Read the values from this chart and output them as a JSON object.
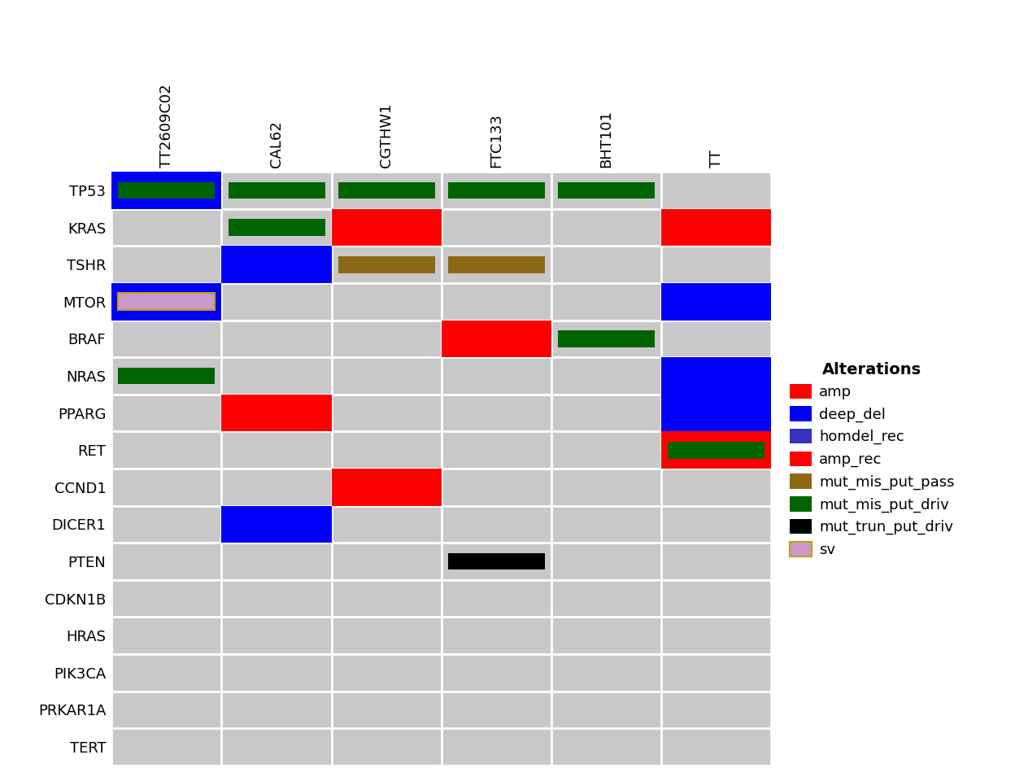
{
  "genes": [
    "TP53",
    "KRAS",
    "TSHR",
    "MTOR",
    "BRAF",
    "NRAS",
    "PPARG",
    "RET",
    "CCND1",
    "DICER1",
    "PTEN",
    "CDKN1B",
    "HRAS",
    "PIK3CA",
    "PRKAR1A",
    "TERT"
  ],
  "cell_lines": [
    "TT2609C02",
    "CAL62",
    "CGTHW1",
    "FTC133",
    "BHT101",
    "TT"
  ],
  "alterations": {
    "TP53": {
      "TT2609C02": [
        "deep_del",
        "mut_mis_put_driv"
      ],
      "CAL62": [
        "mut_mis_put_driv"
      ],
      "CGTHW1": [
        "mut_mis_put_driv"
      ],
      "FTC133": [
        "mut_mis_put_driv"
      ],
      "BHT101": [
        "mut_mis_put_driv"
      ],
      "TT": []
    },
    "KRAS": {
      "TT2609C02": [],
      "CAL62": [
        "mut_mis_put_driv"
      ],
      "CGTHW1": [
        "amp_rec"
      ],
      "FTC133": [],
      "BHT101": [],
      "TT": [
        "amp_rec"
      ]
    },
    "TSHR": {
      "TT2609C02": [],
      "CAL62": [
        "deep_del"
      ],
      "CGTHW1": [
        "mut_mis_put_pass"
      ],
      "FTC133": [
        "mut_mis_put_pass"
      ],
      "BHT101": [],
      "TT": []
    },
    "MTOR": {
      "TT2609C02": [
        "deep_del",
        "sv"
      ],
      "CAL62": [],
      "CGTHW1": [],
      "FTC133": [],
      "BHT101": [],
      "TT": [
        "deep_del"
      ]
    },
    "BRAF": {
      "TT2609C02": [],
      "CAL62": [],
      "CGTHW1": [],
      "FTC133": [
        "amp_rec"
      ],
      "BHT101": [
        "mut_mis_put_driv"
      ],
      "TT": []
    },
    "NRAS": {
      "TT2609C02": [
        "mut_mis_put_driv"
      ],
      "CAL62": [],
      "CGTHW1": [],
      "FTC133": [],
      "BHT101": [],
      "TT": [
        "deep_del"
      ]
    },
    "PPARG": {
      "TT2609C02": [],
      "CAL62": [
        "amp_rec"
      ],
      "CGTHW1": [],
      "FTC133": [],
      "BHT101": [],
      "TT": [
        "deep_del"
      ]
    },
    "RET": {
      "TT2609C02": [],
      "CAL62": [],
      "CGTHW1": [],
      "FTC133": [],
      "BHT101": [],
      "TT": [
        "amp_rec",
        "mut_mis_put_driv"
      ]
    },
    "CCND1": {
      "TT2609C02": [],
      "CAL62": [],
      "CGTHW1": [
        "amp_rec"
      ],
      "FTC133": [],
      "BHT101": [],
      "TT": []
    },
    "DICER1": {
      "TT2609C02": [],
      "CAL62": [
        "deep_del"
      ],
      "CGTHW1": [],
      "FTC133": [],
      "BHT101": [],
      "TT": []
    },
    "PTEN": {
      "TT2609C02": [],
      "CAL62": [],
      "CGTHW1": [],
      "FTC133": [
        "mut_trun_put_driv"
      ],
      "BHT101": [],
      "TT": []
    },
    "CDKN1B": {
      "TT2609C02": [],
      "CAL62": [],
      "CGTHW1": [],
      "FTC133": [],
      "BHT101": [],
      "TT": []
    },
    "HRAS": {
      "TT2609C02": [],
      "CAL62": [],
      "CGTHW1": [],
      "FTC133": [],
      "BHT101": [],
      "TT": []
    },
    "PIK3CA": {
      "TT2609C02": [],
      "CAL62": [],
      "CGTHW1": [],
      "FTC133": [],
      "BHT101": [],
      "TT": []
    },
    "PRKAR1A": {
      "TT2609C02": [],
      "CAL62": [],
      "CGTHW1": [],
      "FTC133": [],
      "BHT101": [],
      "TT": []
    },
    "TERT": {
      "TT2609C02": [],
      "CAL62": [],
      "CGTHW1": [],
      "FTC133": [],
      "BHT101": [],
      "TT": []
    }
  },
  "alteration_colors": {
    "amp": "#FF0000",
    "deep_del": "#0000FF",
    "homdel_rec": "#3333BB",
    "amp_rec": "#FF0000",
    "mut_mis_put_pass": "#8B6914",
    "mut_mis_put_driv": "#006400",
    "mut_trun_put_pass": "#666666",
    "mut_trun_put_driv": "#000000",
    "sv": "#CC99CC"
  },
  "background_color": "#C8C8C8",
  "grid_line_color": "#FFFFFF",
  "legend_title": "Alterations",
  "legend_items": [
    {
      "label": "amp",
      "color": "#FF0000",
      "edgecolor": "none"
    },
    {
      "label": "deep_del",
      "color": "#0000FF",
      "edgecolor": "none"
    },
    {
      "label": "homdel_rec",
      "color": "#3333BB",
      "edgecolor": "none"
    },
    {
      "label": "amp_rec",
      "color": "#FF0000",
      "edgecolor": "none"
    },
    {
      "label": "mut_mis_put_pass",
      "color": "#8B6914",
      "edgecolor": "none"
    },
    {
      "label": "mut_mis_put_driv",
      "color": "#006400",
      "edgecolor": "none"
    },
    {
      "label": "mut_trun_put_driv",
      "color": "#000000",
      "edgecolor": "none"
    },
    {
      "label": "sv",
      "color": "#CC99CC",
      "edgecolor": "#C0A000"
    }
  ],
  "figsize": [
    12.48,
    9.6
  ],
  "dpi": 100,
  "cell_label_fontsize": 13,
  "gene_label_fontsize": 13,
  "legend_title_fontsize": 14,
  "legend_fontsize": 13
}
